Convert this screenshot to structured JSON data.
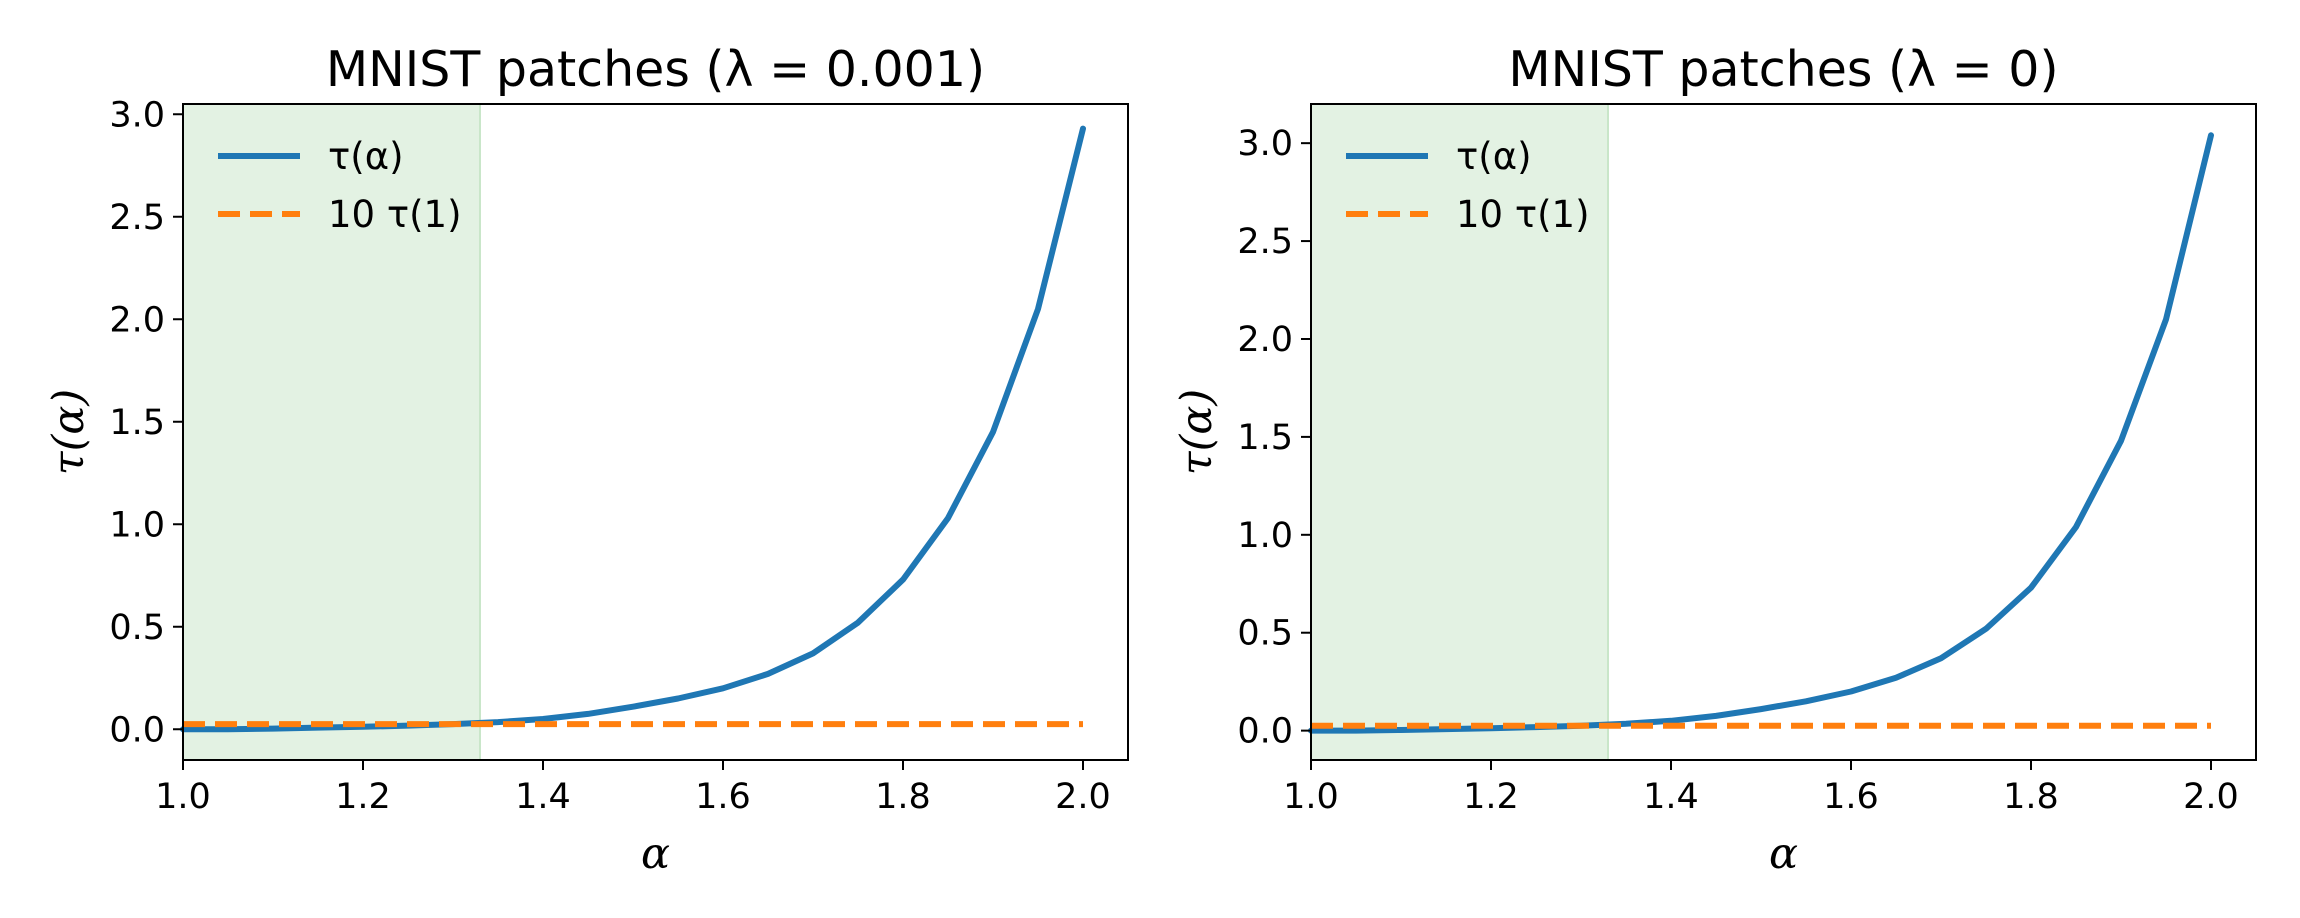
{
  "chart_data": [
    {
      "type": "line",
      "title": "MNIST patches (λ = 0.001)",
      "xlabel": "α",
      "ylabel": "τ(α)",
      "xlim": [
        1.0,
        2.05
      ],
      "ylim": [
        -0.15,
        3.05
      ],
      "xticks": [
        1.0,
        1.2,
        1.4,
        1.6,
        1.8,
        2.0
      ],
      "xtick_labels": [
        "1.0",
        "1.2",
        "1.4",
        "1.6",
        "1.8",
        "2.0"
      ],
      "yticks": [
        0.0,
        0.5,
        1.0,
        1.5,
        2.0,
        2.5,
        3.0
      ],
      "ytick_labels": [
        "0.0",
        "0.5",
        "1.0",
        "1.5",
        "2.0",
        "2.5",
        "3.0"
      ],
      "shaded_region": {
        "x": [
          1.0,
          1.33
        ],
        "color": "#e3f2e3"
      },
      "series": [
        {
          "name": "τ(α)",
          "style": "solid",
          "color": "#1f77b4",
          "x": [
            1.0,
            1.05,
            1.1,
            1.15,
            1.2,
            1.25,
            1.3,
            1.35,
            1.4,
            1.45,
            1.5,
            1.55,
            1.6,
            1.65,
            1.7,
            1.75,
            1.8,
            1.85,
            1.9,
            1.95,
            2.0
          ],
          "values": [
            0.0,
            0.0,
            0.003,
            0.008,
            0.012,
            0.018,
            0.025,
            0.035,
            0.05,
            0.075,
            0.11,
            0.15,
            0.2,
            0.27,
            0.37,
            0.52,
            0.73,
            1.03,
            1.45,
            2.05,
            2.93
          ]
        },
        {
          "name": "10 τ(1)",
          "style": "dashed",
          "color": "#ff7f0e",
          "x": [
            1.0,
            2.0
          ],
          "values": [
            0.025,
            0.025
          ]
        }
      ],
      "legend": "top-left"
    },
    {
      "type": "line",
      "title": "MNIST patches (λ = 0)",
      "xlabel": "α",
      "ylabel": "τ(α)",
      "xlim": [
        1.0,
        2.05
      ],
      "ylim": [
        -0.15,
        3.2
      ],
      "xticks": [
        1.0,
        1.2,
        1.4,
        1.6,
        1.8,
        2.0
      ],
      "xtick_labels": [
        "1.0",
        "1.2",
        "1.4",
        "1.6",
        "1.8",
        "2.0"
      ],
      "yticks": [
        0.0,
        0.5,
        1.0,
        1.5,
        2.0,
        2.5,
        3.0
      ],
      "ytick_labels": [
        "0.0",
        "0.5",
        "1.0",
        "1.5",
        "2.0",
        "2.5",
        "3.0"
      ],
      "shaded_region": {
        "x": [
          1.0,
          1.33
        ],
        "color": "#e3f2e3"
      },
      "series": [
        {
          "name": "τ(α)",
          "style": "solid",
          "color": "#1f77b4",
          "x": [
            1.0,
            1.05,
            1.1,
            1.15,
            1.2,
            1.25,
            1.3,
            1.35,
            1.4,
            1.45,
            1.5,
            1.55,
            1.6,
            1.65,
            1.7,
            1.75,
            1.8,
            1.85,
            1.9,
            1.95,
            2.0
          ],
          "values": [
            0.0,
            0.0,
            0.003,
            0.008,
            0.012,
            0.018,
            0.025,
            0.035,
            0.05,
            0.075,
            0.11,
            0.15,
            0.2,
            0.27,
            0.37,
            0.52,
            0.73,
            1.04,
            1.48,
            2.1,
            3.04
          ]
        },
        {
          "name": "10 τ(1)",
          "style": "dashed",
          "color": "#ff7f0e",
          "x": [
            1.0,
            2.0
          ],
          "values": [
            0.025,
            0.025
          ]
        }
      ],
      "legend": "top-left"
    }
  ]
}
